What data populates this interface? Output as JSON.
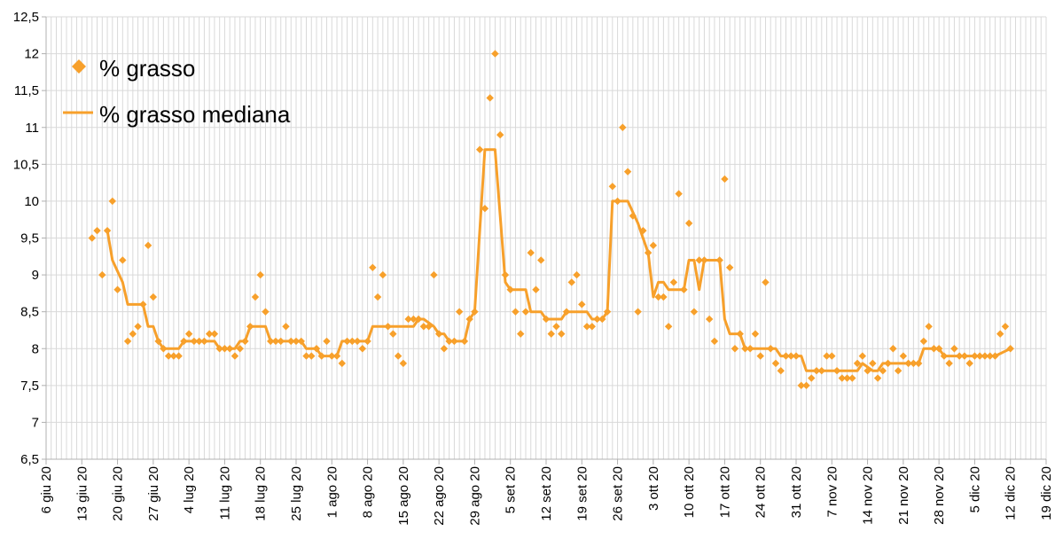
{
  "chart_data": {
    "type": "line",
    "title": "",
    "xlabel": "",
    "ylabel": "",
    "ylim": [
      6.5,
      12.5
    ],
    "ytick_step": 0.5,
    "ytick_labels": [
      "6,5",
      "7",
      "7,5",
      "8",
      "8,5",
      "9",
      "9,5",
      "10",
      "10,5",
      "11",
      "11,5",
      "12",
      "12,5"
    ],
    "x_domain_days": [
      0,
      196
    ],
    "x_tick_labels": [
      "6 giu 20",
      "13 giu 20",
      "20 giu 20",
      "27 giu 20",
      "4 lug 20",
      "11 lug 20",
      "18 lug 20",
      "25 lug 20",
      "1 ago 20",
      "8 ago 20",
      "15 ago 20",
      "22 ago 20",
      "29 ago 20",
      "5 set 20",
      "12 set 20",
      "19 set 20",
      "26 set 20",
      "3 ott 20",
      "10 ott 20",
      "17 ott 20",
      "24 ott 20",
      "31 ott 20",
      "7 nov 20",
      "14 nov 20",
      "21 nov 20",
      "28 nov 20",
      "5 dic 20",
      "12 dic 20",
      "19 dic 20"
    ],
    "x_tick_step_days": 7,
    "x_note": "x values are days since 6 giu 20",
    "grid": true,
    "legend_position": "top-left",
    "colors": {
      "series": "#f7a02b",
      "grid": "#d9d9d9",
      "axis": "#b0b0b0"
    },
    "series": [
      {
        "name": "% grasso",
        "kind": "scatter",
        "marker": "diamond",
        "points": [
          [
            9,
            9.5
          ],
          [
            10,
            9.6
          ],
          [
            11,
            9.0
          ],
          [
            12,
            9.6
          ],
          [
            13,
            10.0
          ],
          [
            14,
            8.8
          ],
          [
            15,
            9.2
          ],
          [
            16,
            8.1
          ],
          [
            17,
            8.2
          ],
          [
            18,
            8.3
          ],
          [
            19,
            8.6
          ],
          [
            20,
            9.4
          ],
          [
            21,
            8.7
          ],
          [
            22,
            8.1
          ],
          [
            23,
            8.0
          ],
          [
            24,
            7.9
          ],
          [
            25,
            7.9
          ],
          [
            26,
            7.9
          ],
          [
            27,
            8.1
          ],
          [
            28,
            8.2
          ],
          [
            29,
            8.1
          ],
          [
            30,
            8.1
          ],
          [
            31,
            8.1
          ],
          [
            32,
            8.2
          ],
          [
            33,
            8.2
          ],
          [
            34,
            8.0
          ],
          [
            35,
            8.0
          ],
          [
            36,
            8.0
          ],
          [
            37,
            7.9
          ],
          [
            38,
            8.0
          ],
          [
            39,
            8.1
          ],
          [
            40,
            8.3
          ],
          [
            41,
            8.7
          ],
          [
            42,
            9.0
          ],
          [
            43,
            8.5
          ],
          [
            44,
            8.1
          ],
          [
            45,
            8.1
          ],
          [
            46,
            8.1
          ],
          [
            47,
            8.3
          ],
          [
            48,
            8.1
          ],
          [
            49,
            8.1
          ],
          [
            50,
            8.1
          ],
          [
            51,
            7.9
          ],
          [
            52,
            7.9
          ],
          [
            53,
            8.0
          ],
          [
            54,
            7.9
          ],
          [
            55,
            8.1
          ],
          [
            56,
            7.9
          ],
          [
            57,
            7.9
          ],
          [
            58,
            7.8
          ],
          [
            59,
            8.1
          ],
          [
            60,
            8.1
          ],
          [
            61,
            8.1
          ],
          [
            62,
            8.0
          ],
          [
            63,
            8.1
          ],
          [
            64,
            9.1
          ],
          [
            65,
            8.7
          ],
          [
            66,
            9.0
          ],
          [
            67,
            8.3
          ],
          [
            68,
            8.2
          ],
          [
            69,
            7.9
          ],
          [
            70,
            7.8
          ],
          [
            71,
            8.4
          ],
          [
            72,
            8.4
          ],
          [
            73,
            8.4
          ],
          [
            74,
            8.3
          ],
          [
            75,
            8.3
          ],
          [
            76,
            9.0
          ],
          [
            77,
            8.2
          ],
          [
            78,
            8.0
          ],
          [
            79,
            8.1
          ],
          [
            80,
            8.1
          ],
          [
            81,
            8.5
          ],
          [
            82,
            8.1
          ],
          [
            83,
            8.4
          ],
          [
            84,
            8.5
          ],
          [
            85,
            10.7
          ],
          [
            86,
            9.9
          ],
          [
            87,
            11.4
          ],
          [
            88,
            12.0
          ],
          [
            89,
            10.9
          ],
          [
            90,
            9.0
          ],
          [
            91,
            8.8
          ],
          [
            92,
            8.5
          ],
          [
            93,
            8.2
          ],
          [
            94,
            8.5
          ],
          [
            95,
            9.3
          ],
          [
            96,
            8.8
          ],
          [
            97,
            9.2
          ],
          [
            98,
            8.4
          ],
          [
            99,
            8.2
          ],
          [
            100,
            8.3
          ],
          [
            101,
            8.2
          ],
          [
            102,
            8.5
          ],
          [
            103,
            8.9
          ],
          [
            104,
            9.0
          ],
          [
            105,
            8.6
          ],
          [
            106,
            8.3
          ],
          [
            107,
            8.3
          ],
          [
            108,
            8.4
          ],
          [
            109,
            8.4
          ],
          [
            110,
            8.5
          ],
          [
            111,
            10.2
          ],
          [
            112,
            10.0
          ],
          [
            113,
            11.0
          ],
          [
            114,
            10.4
          ],
          [
            115,
            9.8
          ],
          [
            116,
            8.5
          ],
          [
            117,
            9.6
          ],
          [
            118,
            9.3
          ],
          [
            119,
            9.4
          ],
          [
            120,
            8.7
          ],
          [
            121,
            8.7
          ],
          [
            122,
            8.3
          ],
          [
            123,
            8.9
          ],
          [
            124,
            10.1
          ],
          [
            125,
            8.8
          ],
          [
            126,
            9.7
          ],
          [
            127,
            8.5
          ],
          [
            128,
            9.2
          ],
          [
            129,
            9.2
          ],
          [
            130,
            8.4
          ],
          [
            131,
            8.1
          ],
          [
            132,
            9.2
          ],
          [
            133,
            10.3
          ],
          [
            134,
            9.1
          ],
          [
            135,
            8.0
          ],
          [
            136,
            8.2
          ],
          [
            137,
            8.0
          ],
          [
            138,
            8.0
          ],
          [
            139,
            8.2
          ],
          [
            140,
            7.9
          ],
          [
            141,
            8.9
          ],
          [
            142,
            8.0
          ],
          [
            143,
            7.8
          ],
          [
            144,
            7.7
          ],
          [
            145,
            7.9
          ],
          [
            146,
            7.9
          ],
          [
            147,
            7.9
          ],
          [
            148,
            7.5
          ],
          [
            149,
            7.5
          ],
          [
            150,
            7.6
          ],
          [
            151,
            7.7
          ],
          [
            152,
            7.7
          ],
          [
            153,
            7.9
          ],
          [
            154,
            7.9
          ],
          [
            155,
            7.7
          ],
          [
            156,
            7.6
          ],
          [
            157,
            7.6
          ],
          [
            158,
            7.6
          ],
          [
            159,
            7.8
          ],
          [
            160,
            7.9
          ],
          [
            161,
            7.7
          ],
          [
            162,
            7.8
          ],
          [
            163,
            7.6
          ],
          [
            164,
            7.7
          ],
          [
            165,
            7.8
          ],
          [
            166,
            8.0
          ],
          [
            167,
            7.7
          ],
          [
            168,
            7.9
          ],
          [
            169,
            7.8
          ],
          [
            170,
            7.8
          ],
          [
            171,
            7.8
          ],
          [
            172,
            8.1
          ],
          [
            173,
            8.3
          ],
          [
            174,
            8.0
          ],
          [
            175,
            8.0
          ],
          [
            176,
            7.9
          ],
          [
            177,
            7.8
          ],
          [
            178,
            8.0
          ],
          [
            179,
            7.9
          ],
          [
            180,
            7.9
          ],
          [
            181,
            7.8
          ],
          [
            182,
            7.9
          ],
          [
            183,
            7.9
          ],
          [
            184,
            7.9
          ],
          [
            185,
            7.9
          ],
          [
            186,
            7.9
          ],
          [
            187,
            8.2
          ],
          [
            188,
            8.3
          ],
          [
            189,
            8.0
          ]
        ]
      },
      {
        "name": "% grasso mediana",
        "kind": "line",
        "points": [
          [
            12,
            9.6
          ],
          [
            13,
            9.2
          ],
          [
            15,
            8.9
          ],
          [
            16,
            8.6
          ],
          [
            19,
            8.6
          ],
          [
            20,
            8.3
          ],
          [
            21,
            8.3
          ],
          [
            22,
            8.1
          ],
          [
            23,
            8.0
          ],
          [
            26,
            8.0
          ],
          [
            27,
            8.1
          ],
          [
            33,
            8.1
          ],
          [
            34,
            8.0
          ],
          [
            37,
            8.0
          ],
          [
            38,
            8.1
          ],
          [
            39,
            8.1
          ],
          [
            40,
            8.3
          ],
          [
            43,
            8.3
          ],
          [
            44,
            8.1
          ],
          [
            50,
            8.1
          ],
          [
            51,
            8.0
          ],
          [
            53,
            8.0
          ],
          [
            54,
            7.9
          ],
          [
            57,
            7.9
          ],
          [
            58,
            8.1
          ],
          [
            62,
            8.1
          ],
          [
            63,
            8.1
          ],
          [
            64,
            8.3
          ],
          [
            72,
            8.3
          ],
          [
            73,
            8.4
          ],
          [
            74,
            8.4
          ],
          [
            76,
            8.3
          ],
          [
            77,
            8.2
          ],
          [
            78,
            8.2
          ],
          [
            79,
            8.1
          ],
          [
            82,
            8.1
          ],
          [
            83,
            8.4
          ],
          [
            84,
            8.5
          ],
          [
            86,
            10.7
          ],
          [
            88,
            10.7
          ],
          [
            90,
            8.9
          ],
          [
            91,
            8.8
          ],
          [
            94,
            8.8
          ],
          [
            95,
            8.5
          ],
          [
            97,
            8.5
          ],
          [
            98,
            8.4
          ],
          [
            101,
            8.4
          ],
          [
            102,
            8.5
          ],
          [
            104,
            8.5
          ],
          [
            106,
            8.5
          ],
          [
            107,
            8.4
          ],
          [
            109,
            8.4
          ],
          [
            110,
            8.5
          ],
          [
            111,
            10.0
          ],
          [
            113,
            10.0
          ],
          [
            114,
            10.0
          ],
          [
            116,
            9.7
          ],
          [
            117,
            9.5
          ],
          [
            118,
            9.3
          ],
          [
            119,
            8.7
          ],
          [
            120,
            8.9
          ],
          [
            121,
            8.9
          ],
          [
            122,
            8.8
          ],
          [
            125,
            8.8
          ],
          [
            126,
            9.2
          ],
          [
            127,
            9.2
          ],
          [
            128,
            8.8
          ],
          [
            129,
            9.2
          ],
          [
            132,
            9.2
          ],
          [
            133,
            8.4
          ],
          [
            134,
            8.2
          ],
          [
            136,
            8.2
          ],
          [
            137,
            8.0
          ],
          [
            140,
            8.0
          ],
          [
            143,
            8.0
          ],
          [
            144,
            7.9
          ],
          [
            147,
            7.9
          ],
          [
            148,
            7.9
          ],
          [
            149,
            7.7
          ],
          [
            152,
            7.7
          ],
          [
            153,
            7.7
          ],
          [
            154,
            7.7
          ],
          [
            158,
            7.7
          ],
          [
            159,
            7.7
          ],
          [
            160,
            7.8
          ],
          [
            162,
            7.7
          ],
          [
            163,
            7.7
          ],
          [
            164,
            7.8
          ],
          [
            170,
            7.8
          ],
          [
            171,
            7.8
          ],
          [
            172,
            8.0
          ],
          [
            174,
            8.0
          ],
          [
            175,
            8.0
          ],
          [
            176,
            7.9
          ],
          [
            185,
            7.9
          ],
          [
            186,
            7.9
          ],
          [
            189,
            8.0
          ]
        ]
      }
    ]
  }
}
